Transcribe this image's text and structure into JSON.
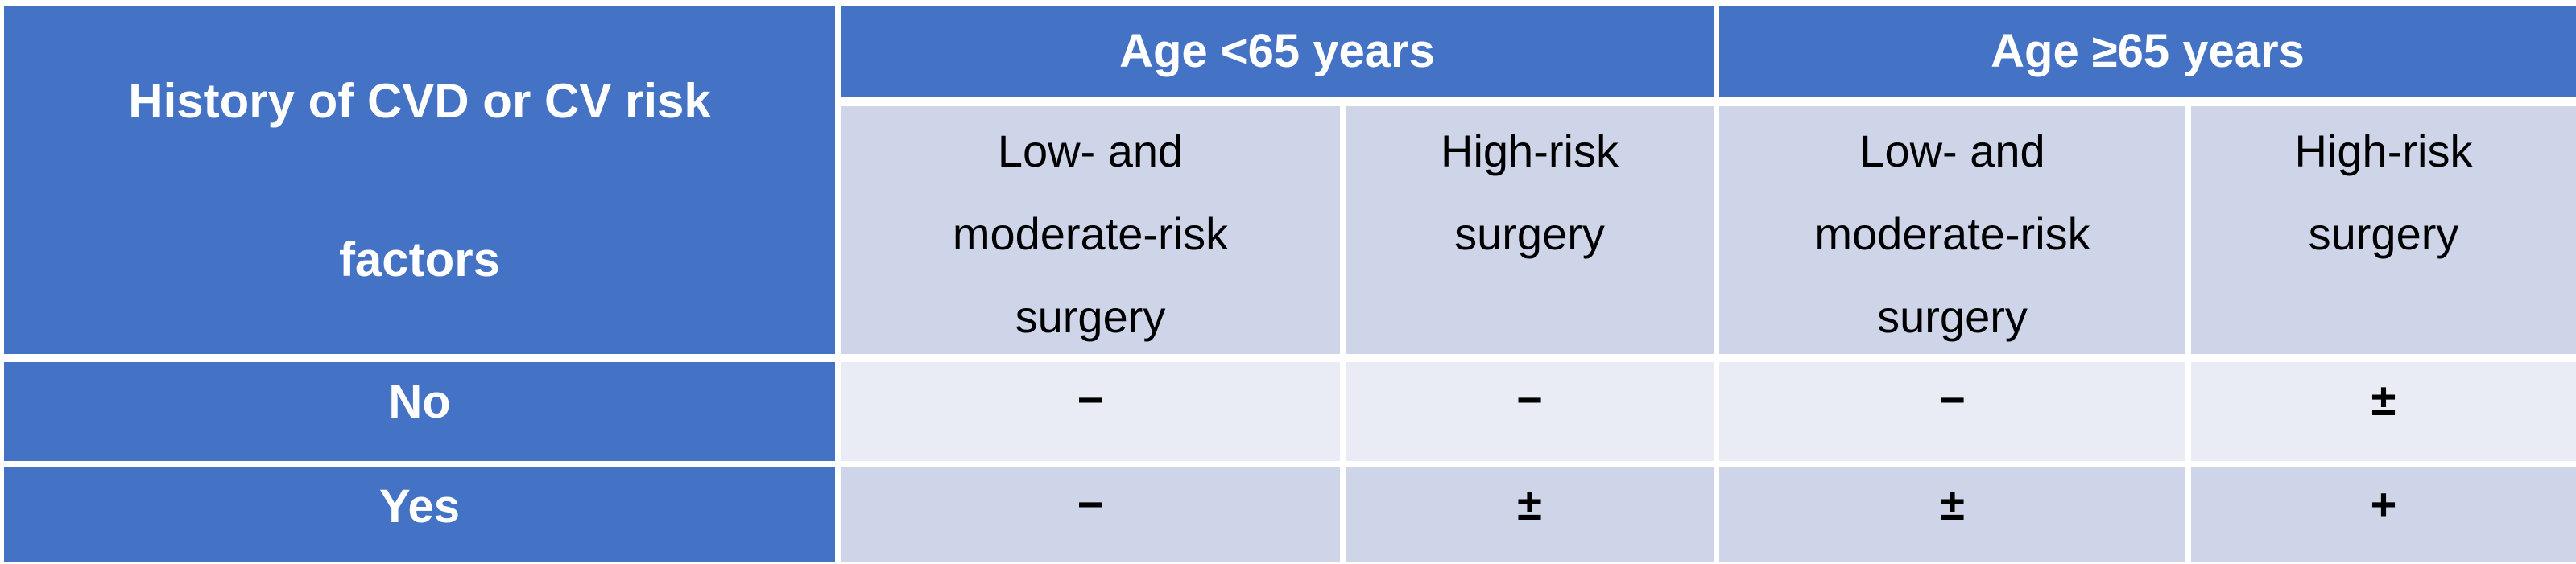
{
  "colors": {
    "header_blue": "#4472C4",
    "band_dark": "#CFD5E9",
    "band_light": "#E9EBF5",
    "border_white": "#FFFFFF",
    "header_text": "#FFFFFF",
    "body_text": "#000000"
  },
  "table": {
    "corner_header_lines": [
      "History of CVD or CV risk",
      "factors"
    ],
    "column_groups": [
      {
        "label": "Age <65 years",
        "subcolumns": [
          "Low- and\nmoderate-risk\nsurgery",
          "High-risk\nsurgery"
        ]
      },
      {
        "label": "Age ≥65 years",
        "subcolumns": [
          "Low- and\nmoderate-risk\nsurgery",
          "High-risk\nsurgery"
        ]
      }
    ],
    "rows": [
      {
        "label": "No",
        "values": [
          "−",
          "−",
          "−",
          "±"
        ]
      },
      {
        "label": "Yes",
        "values": [
          "−",
          "±",
          "±",
          "+"
        ]
      }
    ]
  }
}
